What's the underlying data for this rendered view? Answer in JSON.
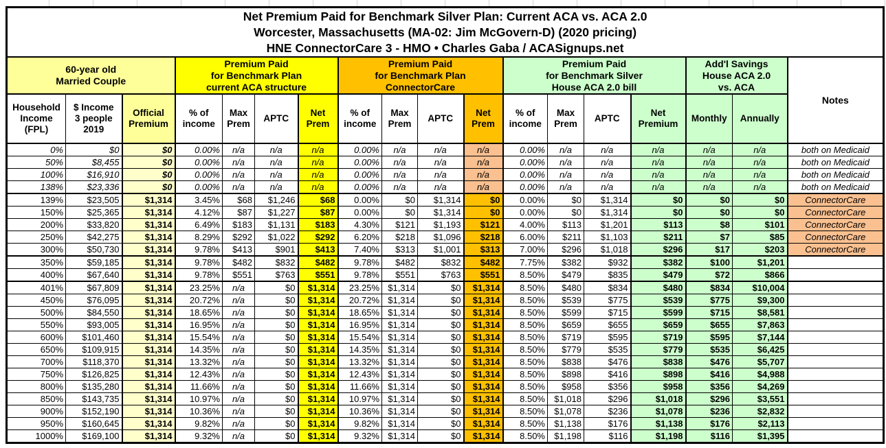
{
  "chart_data": {
    "type": "table",
    "title": "Net Premium Paid for Benchmark Silver Plan: Current ACA vs. ACA 2.0\nWorcester, Massachusetts (MA-02: Jim McGovern-D) (2020 pricing)\nHNE ConnectorCare 3 - HMO • Charles Gaba / ACASignups.net",
    "groups": {
      "household": "60-year old\nMarried Couple",
      "aca": "Premium Paid\nfor Benchmark Plan\ncurrent ACA structure",
      "connectorcare": "Premium Paid\nfor Benchmark Plan\nConnectorCare",
      "aca2": "Premium Paid\nfor Benchmark Silver\nHouse ACA 2.0 bill",
      "savings": "Add'l Savings\nHouse ACA 2.0\nvs. ACA",
      "notes": "Notes"
    },
    "columns": [
      "Household\nIncome\n(FPL)",
      "$ Income\n3 people\n2019",
      "Official\nPremium",
      "% of\nincome",
      "Max\nPrem",
      "APTC",
      "Net\nPrem",
      "% of\nincome",
      "Max\nPrem",
      "APTC",
      "Net\nPrem",
      "% of\nincome",
      "Max\nPrem",
      "APTC",
      "Net\nPremium",
      "Monthly",
      "Annually"
    ],
    "colors": {
      "bright_yellow": "#FFFF00",
      "light_yellow": "#FFFF99",
      "pale_yellow": "#FFFFCC",
      "gold": "#FFC000",
      "peach": "#FAC090",
      "light_green": "#CCFFCC"
    },
    "rows": [
      {
        "type": "medicaid",
        "fpl": "0%",
        "income": "$0",
        "official": "$0",
        "aca": [
          "0.00%",
          "n/a",
          "n/a",
          "n/a"
        ],
        "cc": [
          "0.00%",
          "n/a",
          "n/a",
          "n/a"
        ],
        "aca2": [
          "0.00%",
          "n/a",
          "n/a",
          "n/a"
        ],
        "savings": [
          "n/a",
          "n/a"
        ],
        "note": "both on Medicaid"
      },
      {
        "type": "medicaid",
        "fpl": "50%",
        "income": "$8,455",
        "official": "$0",
        "aca": [
          "0.00%",
          "n/a",
          "n/a",
          "n/a"
        ],
        "cc": [
          "0.00%",
          "n/a",
          "n/a",
          "n/a"
        ],
        "aca2": [
          "0.00%",
          "n/a",
          "n/a",
          "n/a"
        ],
        "savings": [
          "n/a",
          "n/a"
        ],
        "note": "both on Medicaid"
      },
      {
        "type": "medicaid",
        "fpl": "100%",
        "income": "$16,910",
        "official": "$0",
        "aca": [
          "0.00%",
          "n/a",
          "n/a",
          "n/a"
        ],
        "cc": [
          "0.00%",
          "n/a",
          "n/a",
          "n/a"
        ],
        "aca2": [
          "0.00%",
          "n/a",
          "n/a",
          "n/a"
        ],
        "savings": [
          "n/a",
          "n/a"
        ],
        "note": "both on Medicaid"
      },
      {
        "type": "medicaid",
        "fpl": "138%",
        "income": "$23,336",
        "official": "$0",
        "aca": [
          "0.00%",
          "n/a",
          "n/a",
          "n/a"
        ],
        "cc": [
          "0.00%",
          "n/a",
          "n/a",
          "n/a"
        ],
        "aca2": [
          "0.00%",
          "n/a",
          "n/a",
          "n/a"
        ],
        "savings": [
          "n/a",
          "n/a"
        ],
        "note": "both on Medicaid"
      },
      {
        "type": "cc",
        "fpl": "139%",
        "income": "$23,505",
        "official": "$1,314",
        "aca": [
          "3.45%",
          "$68",
          "$1,246",
          "$68"
        ],
        "cc": [
          "0.00%",
          "$0",
          "$1,314",
          "$0"
        ],
        "aca2": [
          "0.00%",
          "$0",
          "$1,314",
          "$0"
        ],
        "savings": [
          "$0",
          "$0"
        ],
        "note": "ConnectorCare"
      },
      {
        "type": "cc",
        "fpl": "150%",
        "income": "$25,365",
        "official": "$1,314",
        "aca": [
          "4.12%",
          "$87",
          "$1,227",
          "$87"
        ],
        "cc": [
          "0.00%",
          "$0",
          "$1,314",
          "$0"
        ],
        "aca2": [
          "0.00%",
          "$0",
          "$1,314",
          "$0"
        ],
        "savings": [
          "$0",
          "$0"
        ],
        "note": "ConnectorCare"
      },
      {
        "type": "cc",
        "fpl": "200%",
        "income": "$33,820",
        "official": "$1,314",
        "aca": [
          "6.49%",
          "$183",
          "$1,131",
          "$183"
        ],
        "cc": [
          "4.30%",
          "$121",
          "$1,193",
          "$121"
        ],
        "aca2": [
          "4.00%",
          "$113",
          "$1,201",
          "$113"
        ],
        "savings": [
          "$8",
          "$101"
        ],
        "note": "ConnectorCare"
      },
      {
        "type": "cc",
        "fpl": "250%",
        "income": "$42,275",
        "official": "$1,314",
        "aca": [
          "8.29%",
          "$292",
          "$1,022",
          "$292"
        ],
        "cc": [
          "6.20%",
          "$218",
          "$1,096",
          "$218"
        ],
        "aca2": [
          "6.00%",
          "$211",
          "$1,103",
          "$211"
        ],
        "savings": [
          "$7",
          "$85"
        ],
        "note": "ConnectorCare"
      },
      {
        "type": "cc",
        "fpl": "300%",
        "income": "$50,730",
        "official": "$1,314",
        "aca": [
          "9.78%",
          "$413",
          "$901",
          "$413"
        ],
        "cc": [
          "7.40%",
          "$313",
          "$1,001",
          "$313"
        ],
        "aca2": [
          "7.00%",
          "$296",
          "$1,018",
          "$296"
        ],
        "savings": [
          "$17",
          "$203"
        ],
        "note": "ConnectorCare"
      },
      {
        "type": "std",
        "fpl": "350%",
        "income": "$59,185",
        "official": "$1,314",
        "aca": [
          "9.78%",
          "$482",
          "$832",
          "$482"
        ],
        "cc": [
          "9.78%",
          "$482",
          "$832",
          "$482"
        ],
        "aca2": [
          "7.75%",
          "$382",
          "$932",
          "$382"
        ],
        "savings": [
          "$100",
          "$1,201"
        ],
        "note": ""
      },
      {
        "type": "std",
        "fpl": "400%",
        "income": "$67,640",
        "official": "$1,314",
        "aca": [
          "9.78%",
          "$551",
          "$763",
          "$551"
        ],
        "cc": [
          "9.78%",
          "$551",
          "$763",
          "$551"
        ],
        "aca2": [
          "8.50%",
          "$479",
          "$835",
          "$479"
        ],
        "savings": [
          "$72",
          "$866"
        ],
        "note": ""
      },
      {
        "type": "std",
        "fpl": "401%",
        "income": "$67,809",
        "official": "$1,314",
        "aca": [
          "23.25%",
          "n/a",
          "$0",
          "$1,314"
        ],
        "cc": [
          "23.25%",
          "$1,314",
          "$0",
          "$1,314"
        ],
        "aca2": [
          "8.50%",
          "$480",
          "$834",
          "$480"
        ],
        "savings": [
          "$834",
          "$10,004"
        ],
        "note": ""
      },
      {
        "type": "std",
        "fpl": "450%",
        "income": "$76,095",
        "official": "$1,314",
        "aca": [
          "20.72%",
          "n/a",
          "$0",
          "$1,314"
        ],
        "cc": [
          "20.72%",
          "$1,314",
          "$0",
          "$1,314"
        ],
        "aca2": [
          "8.50%",
          "$539",
          "$775",
          "$539"
        ],
        "savings": [
          "$775",
          "$9,300"
        ],
        "note": ""
      },
      {
        "type": "std",
        "fpl": "500%",
        "income": "$84,550",
        "official": "$1,314",
        "aca": [
          "18.65%",
          "n/a",
          "$0",
          "$1,314"
        ],
        "cc": [
          "18.65%",
          "$1,314",
          "$0",
          "$1,314"
        ],
        "aca2": [
          "8.50%",
          "$599",
          "$715",
          "$599"
        ],
        "savings": [
          "$715",
          "$8,581"
        ],
        "note": ""
      },
      {
        "type": "std",
        "fpl": "550%",
        "income": "$93,005",
        "official": "$1,314",
        "aca": [
          "16.95%",
          "n/a",
          "$0",
          "$1,314"
        ],
        "cc": [
          "16.95%",
          "$1,314",
          "$0",
          "$1,314"
        ],
        "aca2": [
          "8.50%",
          "$659",
          "$655",
          "$659"
        ],
        "savings": [
          "$655",
          "$7,863"
        ],
        "note": ""
      },
      {
        "type": "std",
        "fpl": "600%",
        "income": "$101,460",
        "official": "$1,314",
        "aca": [
          "15.54%",
          "n/a",
          "$0",
          "$1,314"
        ],
        "cc": [
          "15.54%",
          "$1,314",
          "$0",
          "$1,314"
        ],
        "aca2": [
          "8.50%",
          "$719",
          "$595",
          "$719"
        ],
        "savings": [
          "$595",
          "$7,144"
        ],
        "note": ""
      },
      {
        "type": "std",
        "fpl": "650%",
        "income": "$109,915",
        "official": "$1,314",
        "aca": [
          "14.35%",
          "n/a",
          "$0",
          "$1,314"
        ],
        "cc": [
          "14.35%",
          "$1,314",
          "$0",
          "$1,314"
        ],
        "aca2": [
          "8.50%",
          "$779",
          "$535",
          "$779"
        ],
        "savings": [
          "$535",
          "$6,425"
        ],
        "note": ""
      },
      {
        "type": "std",
        "fpl": "700%",
        "income": "$118,370",
        "official": "$1,314",
        "aca": [
          "13.32%",
          "n/a",
          "$0",
          "$1,314"
        ],
        "cc": [
          "13.32%",
          "$1,314",
          "$0",
          "$1,314"
        ],
        "aca2": [
          "8.50%",
          "$838",
          "$476",
          "$838"
        ],
        "savings": [
          "$476",
          "$5,707"
        ],
        "note": ""
      },
      {
        "type": "std",
        "fpl": "750%",
        "income": "$126,825",
        "official": "$1,314",
        "aca": [
          "12.43%",
          "n/a",
          "$0",
          "$1,314"
        ],
        "cc": [
          "12.43%",
          "$1,314",
          "$0",
          "$1,314"
        ],
        "aca2": [
          "8.50%",
          "$898",
          "$416",
          "$898"
        ],
        "savings": [
          "$416",
          "$4,988"
        ],
        "note": ""
      },
      {
        "type": "std",
        "fpl": "800%",
        "income": "$135,280",
        "official": "$1,314",
        "aca": [
          "11.66%",
          "n/a",
          "$0",
          "$1,314"
        ],
        "cc": [
          "11.66%",
          "$1,314",
          "$0",
          "$1,314"
        ],
        "aca2": [
          "8.50%",
          "$958",
          "$356",
          "$958"
        ],
        "savings": [
          "$356",
          "$4,269"
        ],
        "note": ""
      },
      {
        "type": "std",
        "fpl": "850%",
        "income": "$143,735",
        "official": "$1,314",
        "aca": [
          "10.97%",
          "n/a",
          "$0",
          "$1,314"
        ],
        "cc": [
          "10.97%",
          "$1,314",
          "$0",
          "$1,314"
        ],
        "aca2": [
          "8.50%",
          "$1,018",
          "$296",
          "$1,018"
        ],
        "savings": [
          "$296",
          "$3,551"
        ],
        "note": ""
      },
      {
        "type": "std",
        "fpl": "900%",
        "income": "$152,190",
        "official": "$1,314",
        "aca": [
          "10.36%",
          "n/a",
          "$0",
          "$1,314"
        ],
        "cc": [
          "10.36%",
          "$1,314",
          "$0",
          "$1,314"
        ],
        "aca2": [
          "8.50%",
          "$1,078",
          "$236",
          "$1,078"
        ],
        "savings": [
          "$236",
          "$2,832"
        ],
        "note": ""
      },
      {
        "type": "std",
        "fpl": "950%",
        "income": "$160,645",
        "official": "$1,314",
        "aca": [
          "9.82%",
          "n/a",
          "$0",
          "$1,314"
        ],
        "cc": [
          "9.82%",
          "$1,314",
          "$0",
          "$1,314"
        ],
        "aca2": [
          "8.50%",
          "$1,138",
          "$176",
          "$1,138"
        ],
        "savings": [
          "$176",
          "$2,113"
        ],
        "note": ""
      },
      {
        "type": "std",
        "fpl": "1000%",
        "income": "$169,100",
        "official": "$1,314",
        "aca": [
          "9.32%",
          "n/a",
          "$0",
          "$1,314"
        ],
        "cc": [
          "9.32%",
          "$1,314",
          "$0",
          "$1,314"
        ],
        "aca2": [
          "8.50%",
          "$1,198",
          "$116",
          "$1,198"
        ],
        "savings": [
          "$116",
          "$1,395"
        ],
        "note": ""
      }
    ]
  }
}
